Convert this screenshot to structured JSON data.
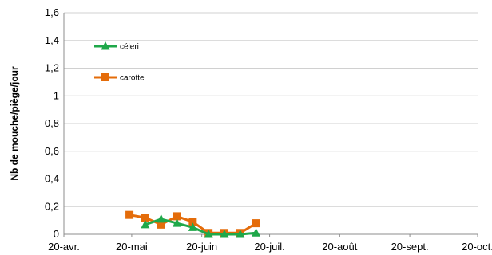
{
  "chart_data": {
    "type": "line",
    "ylabel": "Nb de mouche/piège/jour",
    "ylim": [
      0,
      1.6
    ],
    "y_ticks": [
      "0",
      "0,2",
      "0,4",
      "0,6",
      "0,8",
      "1",
      "1,2",
      "1,4",
      "1,6"
    ],
    "y_tick_values": [
      0,
      0.2,
      0.4,
      0.6,
      0.8,
      1.0,
      1.2,
      1.4,
      1.6
    ],
    "x_ticks": [
      "20-avr.",
      "20-mai",
      "20-juin",
      "20-juil.",
      "20-août",
      "20-sept.",
      "20-oct."
    ],
    "x_tick_dates": [
      "2000-04-20",
      "2000-05-20",
      "2000-06-20",
      "2000-07-20",
      "2000-08-20",
      "2000-09-20",
      "2000-10-20"
    ],
    "grid": "horizontal",
    "legend": "top-left",
    "series": [
      {
        "name": "céleri",
        "color": "#1fa84a",
        "marker": "triangle",
        "x": [
          "2000-05-26",
          "2000-06-02",
          "2000-06-09",
          "2000-06-16",
          "2000-06-23",
          "2000-06-30",
          "2000-07-07",
          "2000-07-14"
        ],
        "values": [
          0.07,
          0.11,
          0.08,
          0.05,
          0.0,
          0.0,
          0.0,
          0.01
        ]
      },
      {
        "name": "carotte",
        "color": "#e46c0a",
        "marker": "square",
        "x": [
          "2000-05-19",
          "2000-05-26",
          "2000-06-02",
          "2000-06-09",
          "2000-06-16",
          "2000-06-23",
          "2000-06-30",
          "2000-07-07",
          "2000-07-14"
        ],
        "values": [
          0.14,
          0.12,
          0.07,
          0.13,
          0.09,
          0.01,
          0.01,
          0.01,
          0.08
        ]
      }
    ]
  }
}
